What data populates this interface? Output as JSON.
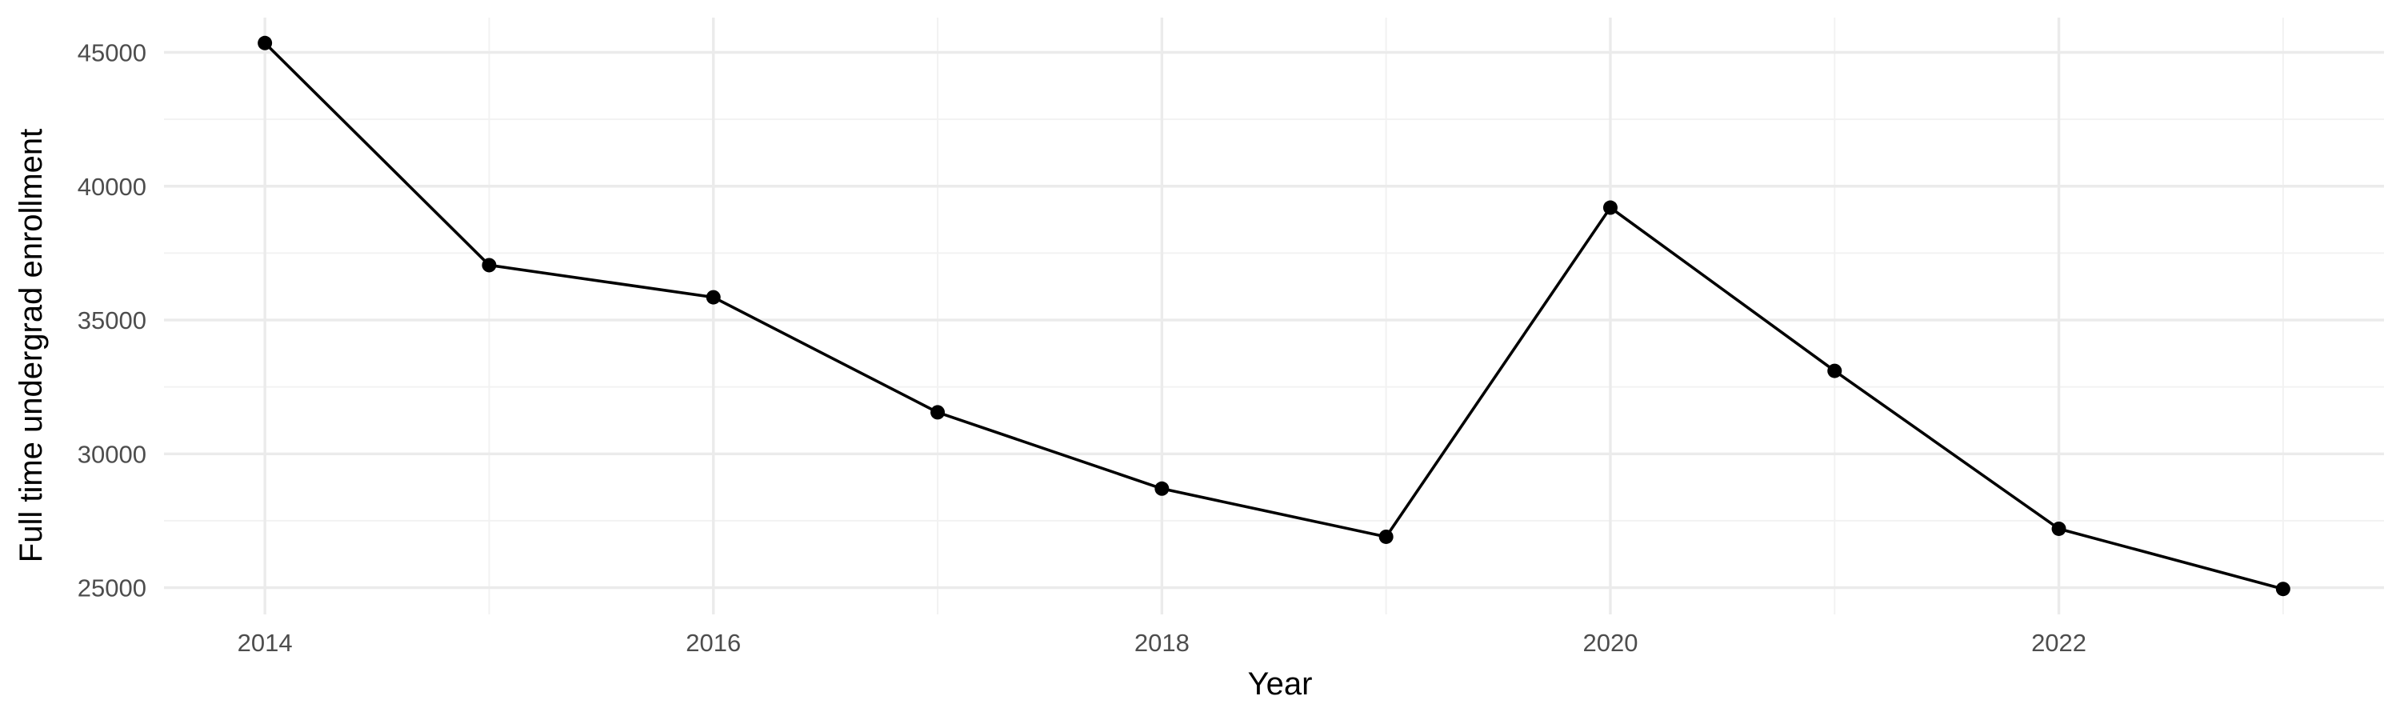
{
  "chart_data": {
    "type": "line",
    "title": "",
    "xlabel": "Year",
    "ylabel": "Full time undergrad enrollment",
    "x": [
      2014,
      2015,
      2016,
      2017,
      2018,
      2019,
      2020,
      2021,
      2022,
      2023
    ],
    "series": [
      {
        "values": [
          45350,
          37050,
          35850,
          31550,
          28700,
          26900,
          39200,
          33100,
          27200,
          24950
        ]
      }
    ],
    "xlim": [
      2013.55,
      2023.45
    ],
    "ylim": [
      24000,
      46300
    ],
    "x_ticks": [
      "2014",
      "2016",
      "2018",
      "2020",
      "2022"
    ],
    "y_ticks": [
      "25000",
      "30000",
      "35000",
      "40000",
      "45000"
    ],
    "grid": true,
    "legend": "none",
    "colors": {
      "line": "#000000",
      "point": "#000000",
      "grid_major": "#ebebeb",
      "grid_minor": "#f2f2f2",
      "tick_text": "#4d4d4d"
    }
  }
}
